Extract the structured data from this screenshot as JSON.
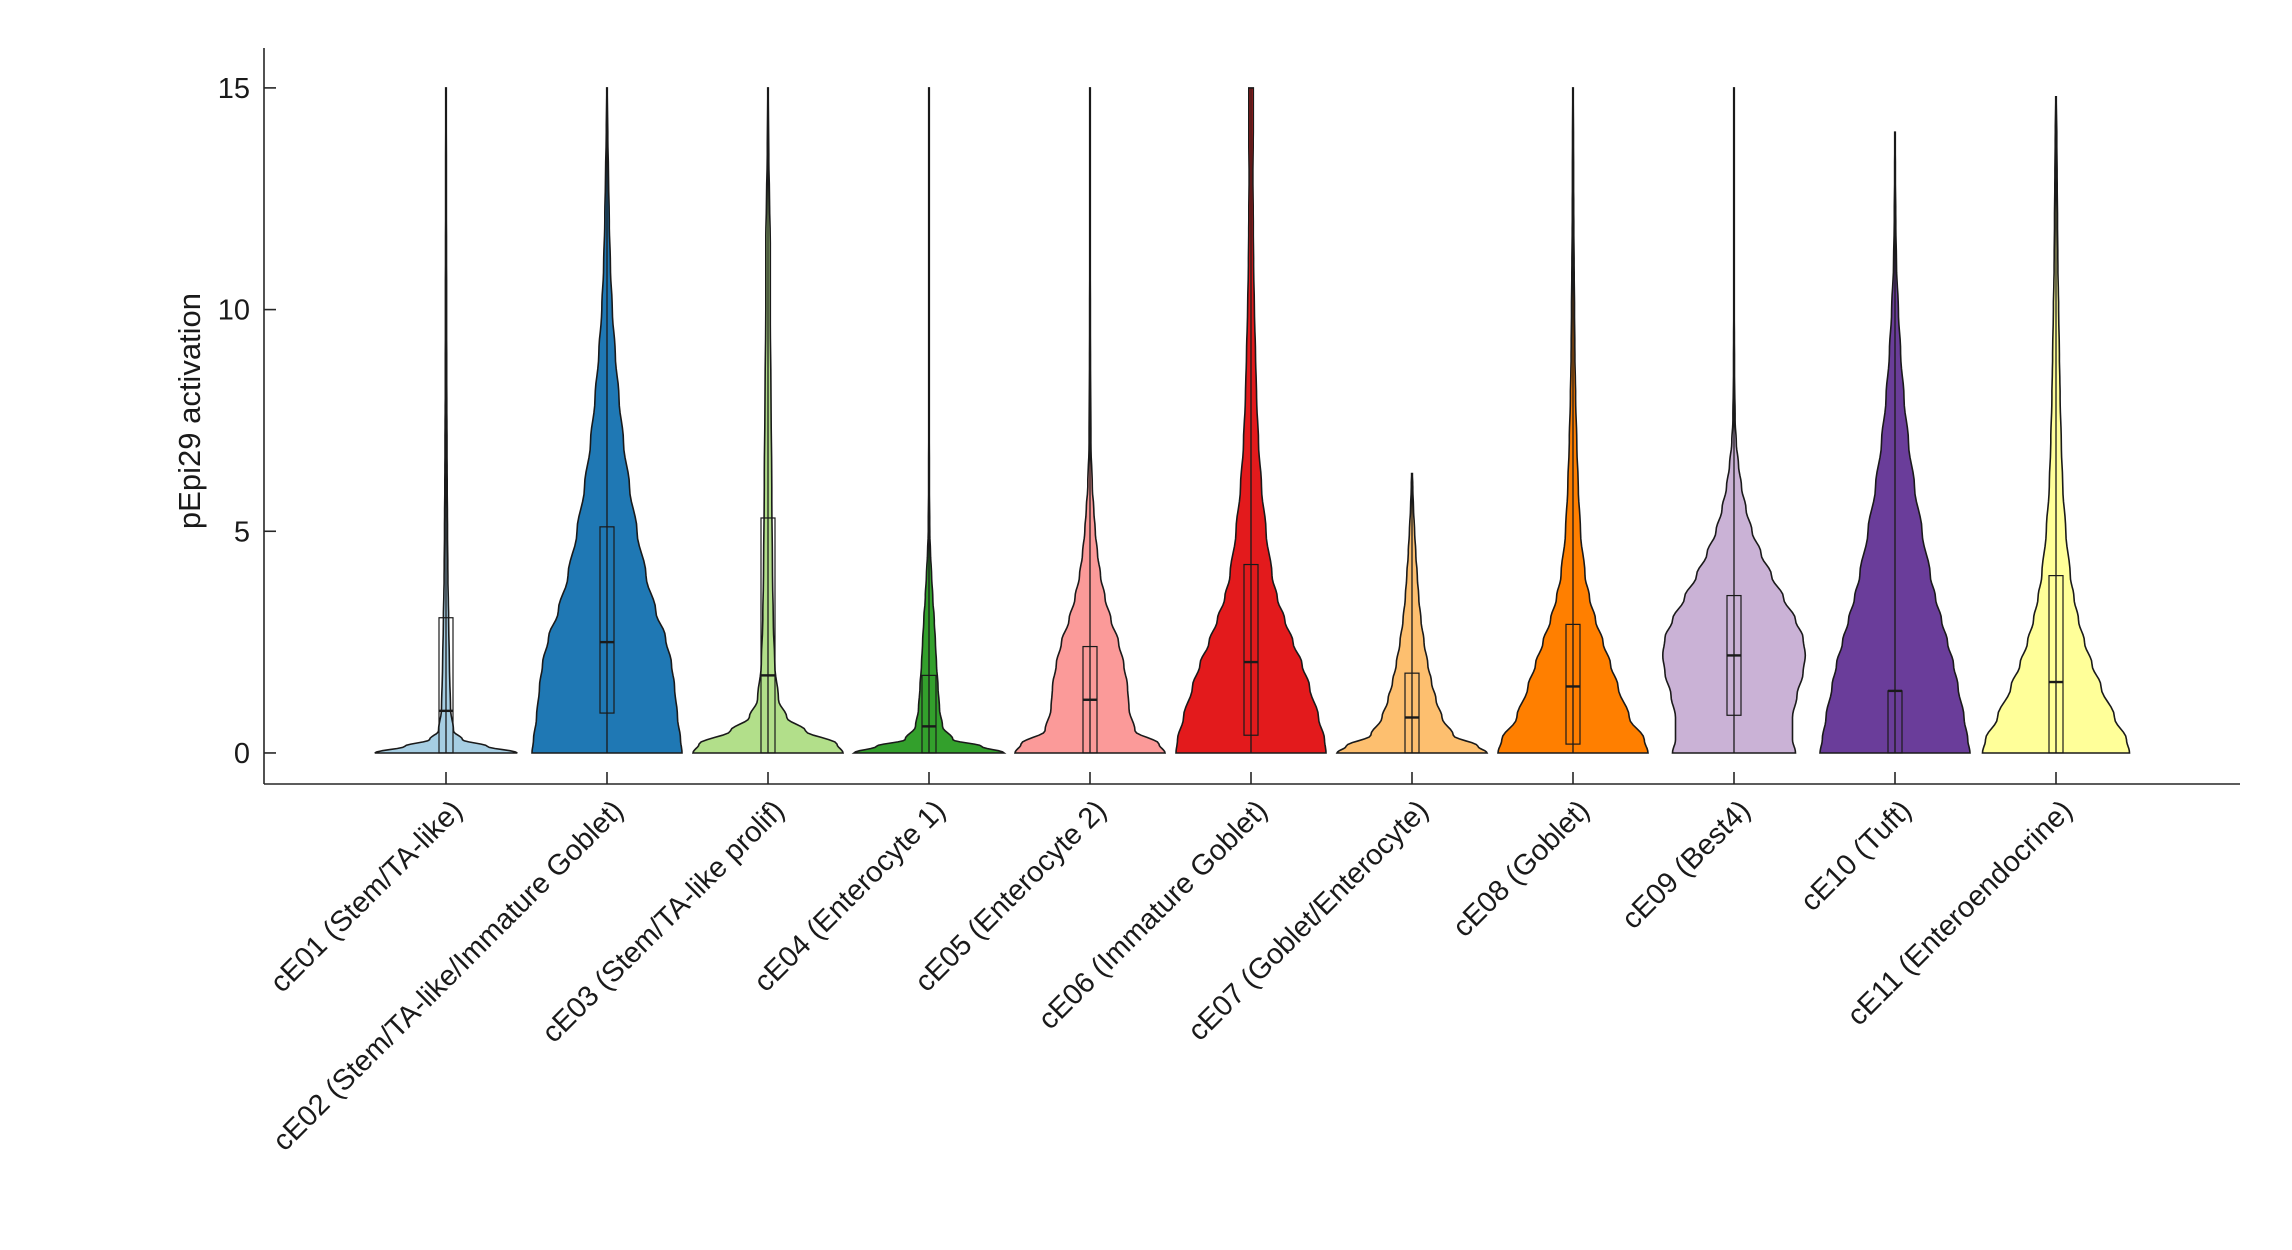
{
  "chart_data": {
    "type": "violin",
    "title": "",
    "xlabel": "",
    "ylabel": "pEpi29 activation",
    "ylim": [
      -0.7,
      15.9
    ],
    "yticks": [
      0,
      5,
      10,
      15
    ],
    "grid": false,
    "series": [
      {
        "name": "cE01 (Stem/TA-like)",
        "color": "#a6cee3",
        "median": 0.95,
        "q1": 0.0,
        "q3": 3.05,
        "whisker_top": 15.0,
        "max": 15.0,
        "density": [
          [
            0,
            0.95
          ],
          [
            0.15,
            0.55
          ],
          [
            0.3,
            0.22
          ],
          [
            0.5,
            0.1
          ],
          [
            1.0,
            0.06
          ],
          [
            2.0,
            0.045
          ],
          [
            3.0,
            0.035
          ],
          [
            4.0,
            0.025
          ],
          [
            5.0,
            0.02
          ],
          [
            6.0,
            0.016
          ],
          [
            7.0,
            0.013
          ],
          [
            8.0,
            0.01
          ],
          [
            10.0,
            0.008
          ],
          [
            12.0,
            0.006
          ],
          [
            15.0,
            0.004
          ]
        ]
      },
      {
        "name": "cE02 (Stem/TA-like/Immature Goblet)",
        "color": "#1f78b4",
        "median": 2.5,
        "q1": 0.9,
        "q3": 5.1,
        "whisker_top": 15.0,
        "max": 15.0,
        "density": [
          [
            0,
            1.0
          ],
          [
            0.3,
            0.98
          ],
          [
            0.8,
            0.94
          ],
          [
            1.5,
            0.9
          ],
          [
            2.0,
            0.86
          ],
          [
            2.6,
            0.78
          ],
          [
            3.2,
            0.65
          ],
          [
            4.0,
            0.52
          ],
          [
            5.0,
            0.4
          ],
          [
            6.0,
            0.3
          ],
          [
            7.0,
            0.22
          ],
          [
            8.0,
            0.16
          ],
          [
            9.0,
            0.11
          ],
          [
            10.0,
            0.07
          ],
          [
            11.0,
            0.045
          ],
          [
            12.0,
            0.03
          ],
          [
            13.0,
            0.02
          ],
          [
            14.0,
            0.01
          ],
          [
            15.0,
            0.004
          ]
        ]
      },
      {
        "name": "cE03 (Stem/TA-like prolif)",
        "color": "#b2df8a",
        "median": 1.75,
        "q1": 0.0,
        "q3": 5.3,
        "whisker_top": 15.0,
        "max": 15.0,
        "density": [
          [
            0,
            1.0
          ],
          [
            0.2,
            0.92
          ],
          [
            0.5,
            0.5
          ],
          [
            0.8,
            0.25
          ],
          [
            1.2,
            0.14
          ],
          [
            2.0,
            0.09
          ],
          [
            3.0,
            0.07
          ],
          [
            4.0,
            0.06
          ],
          [
            6.0,
            0.05
          ],
          [
            8.0,
            0.04
          ],
          [
            10.0,
            0.03
          ],
          [
            11.5,
            0.03
          ],
          [
            12.5,
            0.02
          ],
          [
            13.5,
            0.01
          ],
          [
            15.0,
            0.004
          ]
        ]
      },
      {
        "name": "cE04 (Enterocyte 1)",
        "color": "#33a02c",
        "median": 0.6,
        "q1": 0.0,
        "q3": 1.75,
        "whisker_top": 4.3,
        "max": 15.0,
        "density": [
          [
            0,
            1.0
          ],
          [
            0.15,
            0.7
          ],
          [
            0.3,
            0.32
          ],
          [
            0.6,
            0.18
          ],
          [
            1.0,
            0.14
          ],
          [
            1.5,
            0.12
          ],
          [
            2.0,
            0.1
          ],
          [
            2.5,
            0.085
          ],
          [
            3.0,
            0.07
          ],
          [
            3.5,
            0.05
          ],
          [
            4.0,
            0.035
          ],
          [
            4.5,
            0.02
          ],
          [
            5.0,
            0.01
          ],
          [
            6.0,
            0.005
          ],
          [
            8.0,
            0.003
          ],
          [
            15.0,
            0.002
          ]
        ]
      },
      {
        "name": "cE05 (Enterocyte 2)",
        "color": "#fb9a99",
        "median": 1.2,
        "q1": 0.0,
        "q3": 2.4,
        "whisker_top": 6.0,
        "max": 15.0,
        "density": [
          [
            0,
            1.0
          ],
          [
            0.2,
            0.92
          ],
          [
            0.5,
            0.6
          ],
          [
            1.0,
            0.52
          ],
          [
            1.5,
            0.5
          ],
          [
            2.0,
            0.45
          ],
          [
            2.5,
            0.38
          ],
          [
            3.0,
            0.28
          ],
          [
            3.5,
            0.2
          ],
          [
            4.0,
            0.14
          ],
          [
            4.5,
            0.1
          ],
          [
            5.0,
            0.07
          ],
          [
            5.5,
            0.05
          ],
          [
            6.0,
            0.03
          ],
          [
            7.0,
            0.012
          ],
          [
            9.0,
            0.006
          ],
          [
            11.5,
            0.003
          ],
          [
            15.0,
            0.002
          ]
        ]
      },
      {
        "name": "cE06 (Immature Goblet)",
        "color": "#e31a1c",
        "median": 2.05,
        "q1": 0.4,
        "q3": 4.25,
        "whisker_top": 15.0,
        "max": 15.0,
        "density": [
          [
            0,
            1.0
          ],
          [
            0.3,
            0.98
          ],
          [
            0.8,
            0.9
          ],
          [
            1.5,
            0.78
          ],
          [
            2.0,
            0.68
          ],
          [
            2.5,
            0.56
          ],
          [
            3.0,
            0.45
          ],
          [
            3.5,
            0.35
          ],
          [
            4.0,
            0.28
          ],
          [
            5.0,
            0.2
          ],
          [
            6.0,
            0.14
          ],
          [
            7.0,
            0.1
          ],
          [
            8.0,
            0.075
          ],
          [
            9.0,
            0.06
          ],
          [
            10.0,
            0.045
          ],
          [
            11.0,
            0.035
          ],
          [
            12.0,
            0.03
          ],
          [
            13.0,
            0.025
          ],
          [
            14.0,
            0.03
          ],
          [
            15.0,
            0.03
          ]
        ]
      },
      {
        "name": "cE07 (Goblet/Enterocyte)",
        "color": "#fdbf6f",
        "median": 0.8,
        "q1": 0.0,
        "q3": 1.8,
        "whisker_top": 4.5,
        "max": 6.3,
        "density": [
          [
            0,
            1.0
          ],
          [
            0.15,
            0.88
          ],
          [
            0.4,
            0.55
          ],
          [
            0.8,
            0.4
          ],
          [
            1.2,
            0.32
          ],
          [
            1.6,
            0.26
          ],
          [
            2.0,
            0.21
          ],
          [
            2.5,
            0.16
          ],
          [
            3.0,
            0.12
          ],
          [
            3.5,
            0.09
          ],
          [
            4.0,
            0.07
          ],
          [
            4.5,
            0.05
          ],
          [
            5.0,
            0.035
          ],
          [
            5.5,
            0.02
          ],
          [
            6.0,
            0.01
          ],
          [
            6.3,
            0.005
          ]
        ]
      },
      {
        "name": "cE08 (Goblet)",
        "color": "#ff7f00",
        "median": 1.5,
        "q1": 0.2,
        "q3": 2.9,
        "whisker_top": 6.8,
        "max": 15.0,
        "density": [
          [
            0,
            1.0
          ],
          [
            0.3,
            0.95
          ],
          [
            0.8,
            0.75
          ],
          [
            1.5,
            0.6
          ],
          [
            2.0,
            0.5
          ],
          [
            2.5,
            0.4
          ],
          [
            3.0,
            0.3
          ],
          [
            3.5,
            0.22
          ],
          [
            4.0,
            0.16
          ],
          [
            5.0,
            0.1
          ],
          [
            6.0,
            0.07
          ],
          [
            7.0,
            0.05
          ],
          [
            8.0,
            0.035
          ],
          [
            9.0,
            0.025
          ],
          [
            10.0,
            0.02
          ],
          [
            11.0,
            0.015
          ],
          [
            12.0,
            0.01
          ],
          [
            13.0,
            0.008
          ],
          [
            15.0,
            0.004
          ]
        ]
      },
      {
        "name": "cE09 (Best4)",
        "color": "#cab2d6",
        "median": 2.2,
        "q1": 0.85,
        "q3": 3.55,
        "whisker_top": 7.2,
        "max": 15.0,
        "density": [
          [
            0,
            0.82
          ],
          [
            0.3,
            0.78
          ],
          [
            0.8,
            0.78
          ],
          [
            1.3,
            0.84
          ],
          [
            1.8,
            0.92
          ],
          [
            2.2,
            0.95
          ],
          [
            2.6,
            0.92
          ],
          [
            3.0,
            0.82
          ],
          [
            3.5,
            0.66
          ],
          [
            4.0,
            0.5
          ],
          [
            4.5,
            0.36
          ],
          [
            5.0,
            0.24
          ],
          [
            5.5,
            0.16
          ],
          [
            6.0,
            0.1
          ],
          [
            6.5,
            0.06
          ],
          [
            7.0,
            0.03
          ],
          [
            7.5,
            0.015
          ],
          [
            8.5,
            0.007
          ],
          [
            10.0,
            0.004
          ],
          [
            15.0,
            0.002
          ]
        ]
      },
      {
        "name": "cE10 (Tuft)",
        "color": "#6a3d9a",
        "median": 1.4,
        "q1": 0.0,
        "q3": 1.4,
        "whisker_top": 3.5,
        "max": 14.0,
        "density": [
          [
            0,
            1.0
          ],
          [
            0.3,
            0.97
          ],
          [
            0.8,
            0.92
          ],
          [
            1.5,
            0.84
          ],
          [
            2.0,
            0.78
          ],
          [
            2.5,
            0.7
          ],
          [
            3.0,
            0.62
          ],
          [
            3.5,
            0.54
          ],
          [
            4.0,
            0.47
          ],
          [
            5.0,
            0.36
          ],
          [
            6.0,
            0.26
          ],
          [
            7.0,
            0.18
          ],
          [
            8.0,
            0.12
          ],
          [
            9.0,
            0.075
          ],
          [
            10.0,
            0.045
          ],
          [
            11.0,
            0.02
          ],
          [
            12.0,
            0.01
          ],
          [
            13.0,
            0.005
          ],
          [
            14.0,
            0.002
          ]
        ]
      },
      {
        "name": "cE11 (Enteroendocrine)",
        "color": "#ffff99",
        "median": 1.6,
        "q1": 0.0,
        "q3": 4.0,
        "whisker_top": 14.0,
        "max": 14.8,
        "density": [
          [
            0,
            0.98
          ],
          [
            0.3,
            0.94
          ],
          [
            0.8,
            0.78
          ],
          [
            1.5,
            0.6
          ],
          [
            2.0,
            0.48
          ],
          [
            2.5,
            0.38
          ],
          [
            3.0,
            0.3
          ],
          [
            3.5,
            0.24
          ],
          [
            4.0,
            0.19
          ],
          [
            5.0,
            0.13
          ],
          [
            6.0,
            0.09
          ],
          [
            7.0,
            0.07
          ],
          [
            8.0,
            0.055
          ],
          [
            9.0,
            0.045
          ],
          [
            10.0,
            0.035
          ],
          [
            11.0,
            0.025
          ],
          [
            12.0,
            0.02
          ],
          [
            13.0,
            0.015
          ],
          [
            14.0,
            0.01
          ],
          [
            14.8,
            0.004
          ]
        ]
      }
    ]
  }
}
